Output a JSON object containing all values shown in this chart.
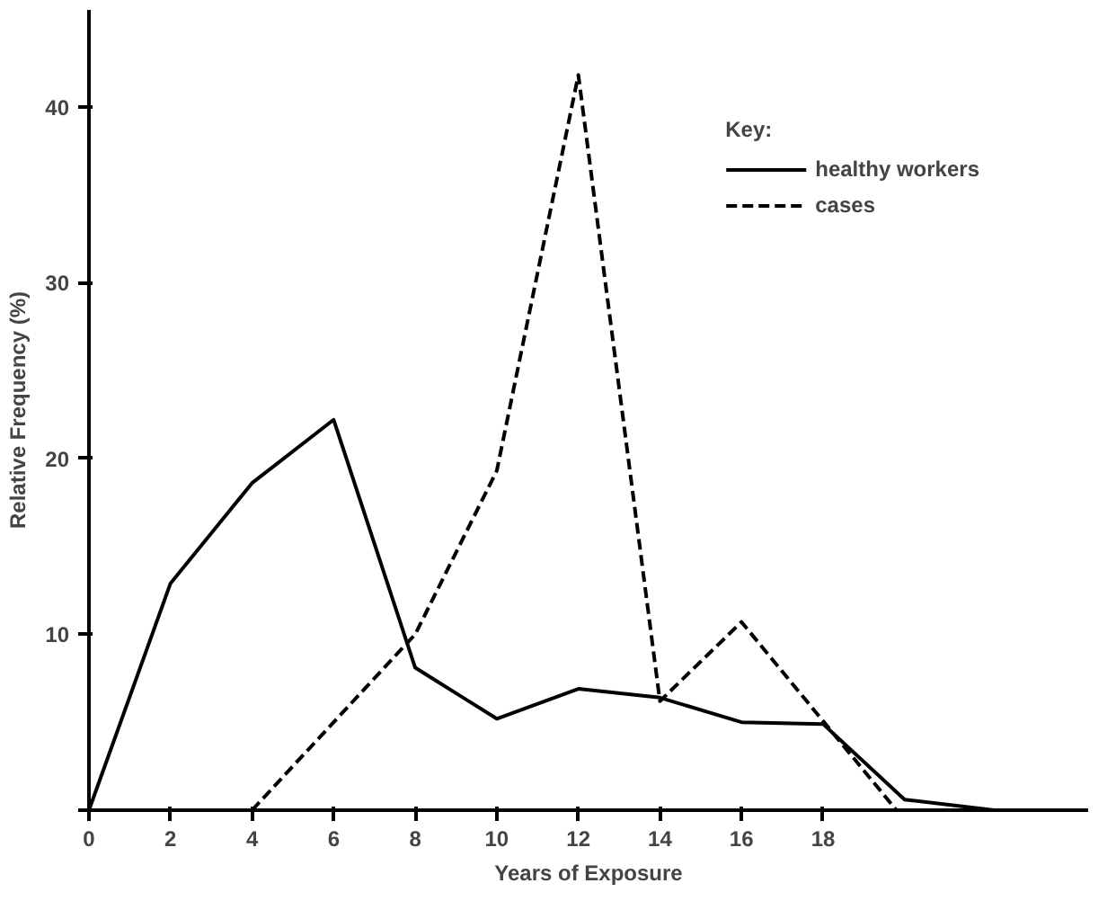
{
  "chart_data": {
    "type": "line",
    "xlabel": "Years of Exposure",
    "ylabel": "Relative Frequency (%)",
    "legend_title": "Key:",
    "legend": "top right",
    "grid": false,
    "xlim": [
      0,
      24.5
    ],
    "ylim": [
      0,
      45.5
    ],
    "xticks": [
      0,
      2,
      4,
      6,
      8,
      10,
      12,
      14,
      16,
      18
    ],
    "yticks": [
      {
        "value": 0,
        "label": null
      },
      10,
      20,
      30,
      40
    ],
    "series": [
      {
        "name": "healthy workers",
        "color": "#000000",
        "line_style": "solid",
        "x": [
          0,
          2,
          4,
          6,
          8,
          10,
          12,
          14,
          16,
          18,
          20,
          22.2
        ],
        "values": [
          0,
          12.9,
          18.6,
          22.2,
          8.1,
          5.2,
          6.9,
          6.4,
          5.0,
          4.9,
          0.6,
          0
        ]
      },
      {
        "name": "cases",
        "color": "#000000",
        "line_style": "dashed",
        "x": [
          4,
          8,
          10,
          12,
          14,
          16,
          19.8
        ],
        "values": [
          0,
          10,
          19.3,
          41.8,
          6.2,
          10.7,
          0
        ]
      }
    ]
  }
}
